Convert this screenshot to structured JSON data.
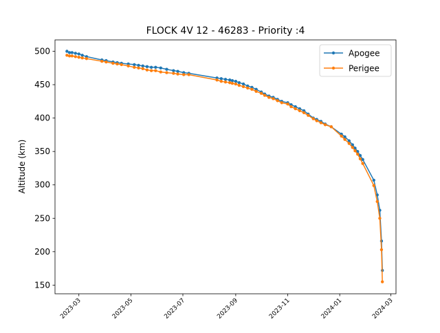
{
  "chart_data": {
    "type": "line",
    "title": "FLOCK 4V 12 - 46283 - Priority :4",
    "xlabel": "",
    "ylabel": "Altitude (km)",
    "xlim": [
      "2023-02-01",
      "2024-03-07"
    ],
    "ylim": [
      137,
      517
    ],
    "x_ticks": [
      "2023-03",
      "2023-05",
      "2023-07",
      "2023-09",
      "2023-11",
      "2024-01",
      "2024-03"
    ],
    "y_ticks": [
      150,
      200,
      250,
      300,
      350,
      400,
      450,
      500
    ],
    "grid": false,
    "legend": "upper-right",
    "series": [
      {
        "name": "Apogee",
        "color": "#1f77b4",
        "points": [
          [
            "2023-02-15",
            500
          ],
          [
            "2023-02-18",
            498
          ],
          [
            "2023-02-21",
            498
          ],
          [
            "2023-02-25",
            497
          ],
          [
            "2023-03-01",
            496
          ],
          [
            "2023-03-05",
            494
          ],
          [
            "2023-03-10",
            492
          ],
          [
            "2023-03-28",
            487
          ],
          [
            "2023-04-02",
            486
          ],
          [
            "2023-04-10",
            484
          ],
          [
            "2023-04-15",
            483
          ],
          [
            "2023-04-20",
            482
          ],
          [
            "2023-04-28",
            481
          ],
          [
            "2023-05-05",
            480
          ],
          [
            "2023-05-10",
            479
          ],
          [
            "2023-05-15",
            478
          ],
          [
            "2023-05-20",
            477
          ],
          [
            "2023-05-25",
            476
          ],
          [
            "2023-05-30",
            476
          ],
          [
            "2023-06-05",
            475
          ],
          [
            "2023-06-12",
            473
          ],
          [
            "2023-06-20",
            471
          ],
          [
            "2023-06-25",
            470
          ],
          [
            "2023-07-02",
            468
          ],
          [
            "2023-07-08",
            467
          ],
          [
            "2023-08-10",
            460
          ],
          [
            "2023-08-15",
            459
          ],
          [
            "2023-08-20",
            458
          ],
          [
            "2023-08-25",
            457
          ],
          [
            "2023-08-28",
            456
          ],
          [
            "2023-09-01",
            455
          ],
          [
            "2023-09-05",
            453
          ],
          [
            "2023-09-10",
            451
          ],
          [
            "2023-09-15",
            448
          ],
          [
            "2023-09-20",
            446
          ],
          [
            "2023-09-25",
            443
          ],
          [
            "2023-10-01",
            439
          ],
          [
            "2023-10-05",
            436
          ],
          [
            "2023-10-10",
            433
          ],
          [
            "2023-10-15",
            431
          ],
          [
            "2023-10-20",
            428
          ],
          [
            "2023-10-25",
            425
          ],
          [
            "2023-11-01",
            423
          ],
          [
            "2023-11-05",
            420
          ],
          [
            "2023-11-10",
            417
          ],
          [
            "2023-11-15",
            414
          ],
          [
            "2023-11-20",
            411
          ],
          [
            "2023-11-25",
            406
          ],
          [
            "2023-12-01",
            400
          ],
          [
            "2023-12-05",
            398
          ],
          [
            "2023-12-10",
            395
          ],
          [
            "2023-12-15",
            391
          ],
          [
            "2023-12-22",
            387
          ],
          [
            "2024-01-03",
            376
          ],
          [
            "2024-01-07",
            372
          ],
          [
            "2024-01-12",
            366
          ],
          [
            "2024-01-16",
            360
          ],
          [
            "2024-01-19",
            355
          ],
          [
            "2024-01-22",
            350
          ],
          [
            "2024-01-25",
            344
          ],
          [
            "2024-01-28",
            338
          ],
          [
            "2024-02-10",
            307
          ],
          [
            "2024-02-14",
            285
          ],
          [
            "2024-02-17",
            262
          ],
          [
            "2024-02-19",
            216
          ],
          [
            "2024-02-20",
            172
          ]
        ]
      },
      {
        "name": "Perigee",
        "color": "#ff7f0e",
        "points": [
          [
            "2023-02-15",
            494
          ],
          [
            "2023-02-18",
            493
          ],
          [
            "2023-02-21",
            493
          ],
          [
            "2023-02-25",
            492
          ],
          [
            "2023-03-01",
            491
          ],
          [
            "2023-03-05",
            490
          ],
          [
            "2023-03-10",
            489
          ],
          [
            "2023-03-28",
            485
          ],
          [
            "2023-04-02",
            484
          ],
          [
            "2023-04-10",
            482
          ],
          [
            "2023-04-15",
            481
          ],
          [
            "2023-04-20",
            480
          ],
          [
            "2023-04-28",
            478
          ],
          [
            "2023-05-05",
            476
          ],
          [
            "2023-05-10",
            475
          ],
          [
            "2023-05-15",
            474
          ],
          [
            "2023-05-20",
            472
          ],
          [
            "2023-05-25",
            471
          ],
          [
            "2023-05-30",
            471
          ],
          [
            "2023-06-05",
            469
          ],
          [
            "2023-06-12",
            468
          ],
          [
            "2023-06-20",
            467
          ],
          [
            "2023-06-25",
            466
          ],
          [
            "2023-07-02",
            465
          ],
          [
            "2023-07-08",
            465
          ],
          [
            "2023-08-10",
            457
          ],
          [
            "2023-08-15",
            455
          ],
          [
            "2023-08-20",
            454
          ],
          [
            "2023-08-25",
            453
          ],
          [
            "2023-08-28",
            452
          ],
          [
            "2023-09-01",
            451
          ],
          [
            "2023-09-05",
            449
          ],
          [
            "2023-09-10",
            447
          ],
          [
            "2023-09-15",
            445
          ],
          [
            "2023-09-20",
            443
          ],
          [
            "2023-09-25",
            440
          ],
          [
            "2023-10-01",
            437
          ],
          [
            "2023-10-05",
            434
          ],
          [
            "2023-10-10",
            431
          ],
          [
            "2023-10-15",
            429
          ],
          [
            "2023-10-20",
            426
          ],
          [
            "2023-10-25",
            423
          ],
          [
            "2023-11-01",
            421
          ],
          [
            "2023-11-05",
            417
          ],
          [
            "2023-11-10",
            414
          ],
          [
            "2023-11-15",
            411
          ],
          [
            "2023-11-20",
            408
          ],
          [
            "2023-11-25",
            404
          ],
          [
            "2023-12-01",
            399
          ],
          [
            "2023-12-05",
            396
          ],
          [
            "2023-12-10",
            393
          ],
          [
            "2023-12-15",
            390
          ],
          [
            "2023-12-22",
            387
          ],
          [
            "2024-01-03",
            373
          ],
          [
            "2024-01-07",
            368
          ],
          [
            "2024-01-12",
            362
          ],
          [
            "2024-01-16",
            356
          ],
          [
            "2024-01-19",
            351
          ],
          [
            "2024-01-22",
            346
          ],
          [
            "2024-01-25",
            339
          ],
          [
            "2024-01-28",
            332
          ],
          [
            "2024-02-10",
            299
          ],
          [
            "2024-02-14",
            275
          ],
          [
            "2024-02-17",
            250
          ],
          [
            "2024-02-19",
            203
          ],
          [
            "2024-02-20",
            155
          ]
        ]
      }
    ]
  }
}
